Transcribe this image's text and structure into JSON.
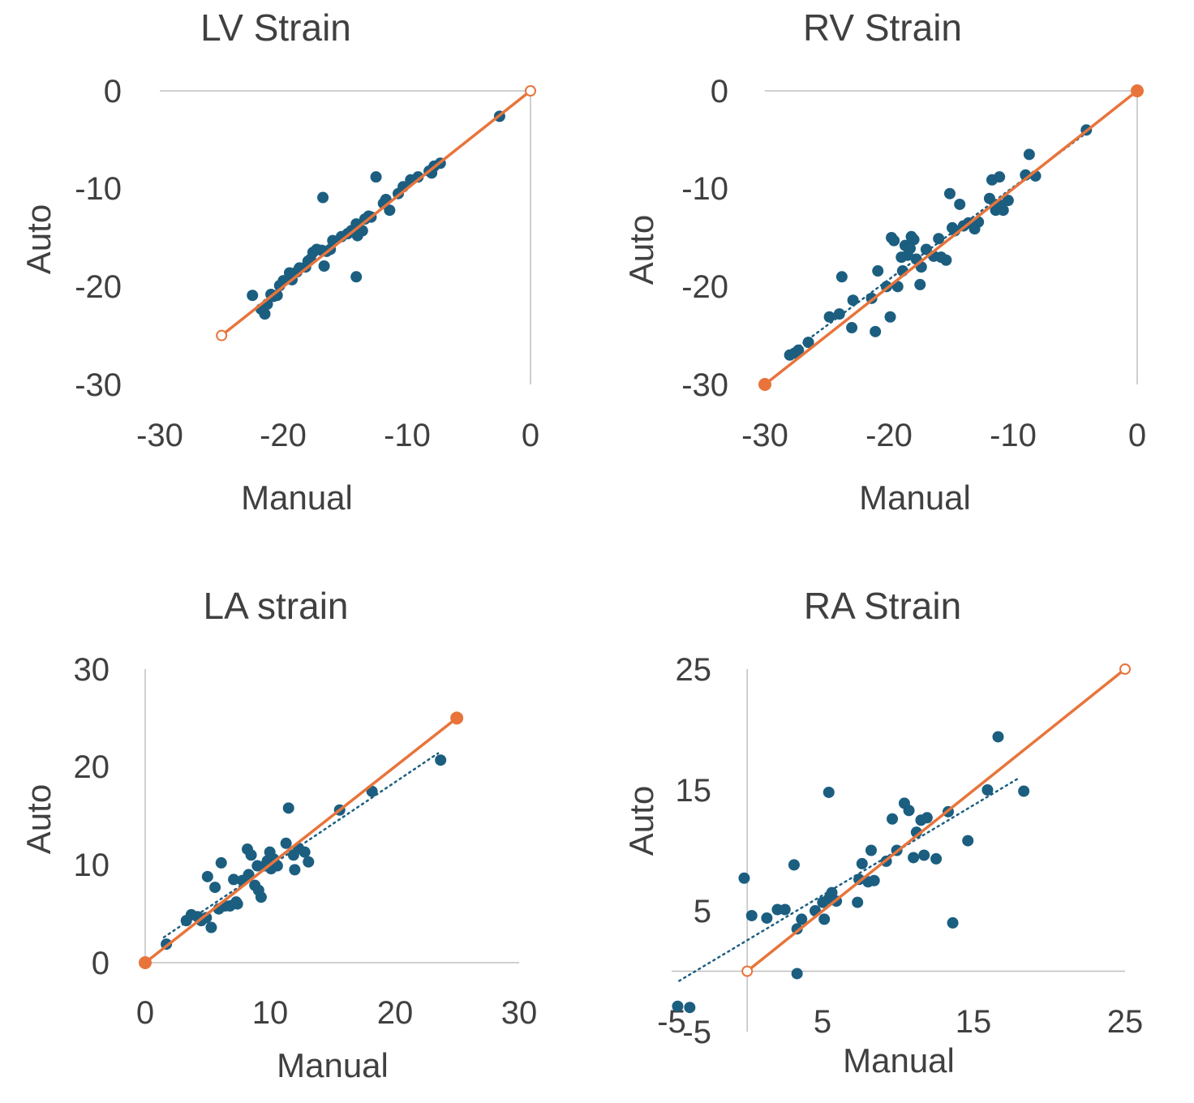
{
  "chart_data": [
    {
      "type": "scatter",
      "title": "LV Strain",
      "xlabel": "Manual",
      "ylabel": "Auto",
      "xlim": [
        -30,
        0
      ],
      "ylim": [
        -30,
        0
      ],
      "xticks": [
        "-30",
        "-20",
        "-10",
        "0"
      ],
      "yticks": [
        "0",
        "-10",
        "-20",
        "-30"
      ],
      "grid": false,
      "points_color": "#1b5e80",
      "identity_color": "#e8743b",
      "trend_color": "#1b5e80",
      "identity_line": {
        "x": [
          -25,
          0
        ],
        "y": [
          -25,
          0
        ],
        "marker_fill": "none"
      },
      "trend_line": {
        "x": [
          -25,
          -2.5
        ],
        "y": [
          -25,
          -2.5
        ]
      },
      "series": [
        {
          "x": [
            -22.5,
            -21.8,
            -21.5,
            -21.3,
            -21.0,
            -20.8,
            -20.5,
            -20.3,
            -20.0,
            -19.5,
            -19.3,
            -18.9,
            -18.7,
            -18.2,
            -18.0,
            -17.8,
            -17.6,
            -17.3,
            -16.9,
            -16.7,
            -16.5,
            -16.2,
            -16.0,
            -15.3,
            -14.8,
            -14.5,
            -14.1,
            -14.0,
            -13.6,
            -13.4,
            -13.1,
            -12.9,
            -12.5,
            -11.9,
            -11.7,
            -11.4,
            -10.7,
            -10.3,
            -9.7,
            -9.1,
            -8.2,
            -8.0,
            -7.8,
            -7.3,
            -2.5,
            -16.8,
            -14.1
          ],
          "y": [
            -20.9,
            -22.3,
            -22.8,
            -21.8,
            -20.8,
            -21.0,
            -20.9,
            -19.9,
            -19.4,
            -18.6,
            -19.3,
            -18.5,
            -18.1,
            -18.0,
            -17.4,
            -17.2,
            -16.5,
            -16.2,
            -16.3,
            -17.9,
            -16.4,
            -16.2,
            -15.3,
            -14.9,
            -14.6,
            -14.3,
            -13.6,
            -14.8,
            -14.3,
            -13.1,
            -12.8,
            -12.9,
            -8.8,
            -11.5,
            -11.1,
            -12.2,
            -10.5,
            -9.8,
            -9.1,
            -8.8,
            -8.2,
            -8.4,
            -7.7,
            -7.4,
            -2.6,
            -10.9,
            -19.0
          ]
        }
      ]
    },
    {
      "type": "scatter",
      "title": "RV Strain",
      "xlabel": "Manual",
      "ylabel": "Auto",
      "xlim": [
        -30,
        0
      ],
      "ylim": [
        -30,
        0
      ],
      "xticks": [
        "-30",
        "-20",
        "-10",
        "0"
      ],
      "yticks": [
        "0",
        "-10",
        "-20",
        "-30"
      ],
      "grid": false,
      "points_color": "#1b5e80",
      "identity_color": "#e8743b",
      "trend_color": "#1b5e80",
      "identity_line": {
        "x": [
          -30,
          0
        ],
        "y": [
          -30,
          0
        ],
        "marker_fill": "solid"
      },
      "trend_line": {
        "x": [
          -28,
          -4
        ],
        "y": [
          -26.8,
          -4.2
        ]
      },
      "series": [
        {
          "x": [
            -28.0,
            -27.6,
            -27.3,
            -26.5,
            -24.8,
            -24.0,
            -23.8,
            -23.0,
            -22.9,
            -21.4,
            -21.1,
            -20.9,
            -20.2,
            -19.9,
            -19.8,
            -19.6,
            -19.3,
            -19.0,
            -18.9,
            -18.7,
            -18.5,
            -18.3,
            -18.2,
            -18.0,
            -17.8,
            -17.5,
            -17.4,
            -17.0,
            -16.4,
            -16.0,
            -15.8,
            -15.4,
            -15.1,
            -14.9,
            -14.7,
            -14.3,
            -14.0,
            -13.6,
            -13.1,
            -12.8,
            -11.9,
            -11.7,
            -11.4,
            -11.1,
            -11.0,
            -10.8,
            -10.4,
            -9.0,
            -8.7,
            -8.2,
            -4.1
          ],
          "y": [
            -27.0,
            -26.8,
            -26.5,
            -25.7,
            -23.1,
            -22.8,
            -19.0,
            -24.2,
            -21.4,
            -21.2,
            -24.6,
            -18.4,
            -20.0,
            -23.1,
            -15.0,
            -15.3,
            -20.0,
            -17.0,
            -18.4,
            -15.8,
            -16.8,
            -16.1,
            -14.9,
            -15.2,
            -17.2,
            -19.8,
            -18.0,
            -16.2,
            -16.9,
            -15.1,
            -17.0,
            -17.3,
            -10.5,
            -14.0,
            -14.3,
            -11.6,
            -13.8,
            -13.5,
            -14.1,
            -13.4,
            -11.0,
            -9.1,
            -12.2,
            -8.8,
            -11.7,
            -12.2,
            -11.2,
            -8.6,
            -6.5,
            -8.7,
            -4.0
          ]
        }
      ]
    },
    {
      "type": "scatter",
      "title": "LA  strain",
      "xlabel": "Manual",
      "ylabel": "Auto",
      "xlim": [
        0,
        30
      ],
      "ylim": [
        0,
        30
      ],
      "xticks": [
        "0",
        "10",
        "20",
        "30"
      ],
      "yticks": [
        "30",
        "20",
        "10",
        "0"
      ],
      "grid": false,
      "points_color": "#1b5e80",
      "identity_color": "#e8743b",
      "trend_color": "#1b5e80",
      "identity_line": {
        "x": [
          0,
          25
        ],
        "y": [
          0,
          25
        ],
        "marker_fill": "solid"
      },
      "trend_line": {
        "x": [
          1.5,
          23.5
        ],
        "y": [
          2.6,
          21.4
        ]
      },
      "series": [
        {
          "x": [
            1.7,
            3.3,
            3.7,
            4.2,
            4.5,
            4.9,
            5.3,
            5.6,
            5.9,
            6.1,
            6.4,
            6.8,
            7.1,
            7.3,
            7.4,
            7.8,
            8.2,
            8.3,
            8.5,
            8.8,
            9.0,
            9.1,
            9.3,
            9.6,
            9.8,
            10.0,
            10.1,
            10.3,
            10.6,
            11.3,
            11.5,
            11.9,
            12.0,
            12.3,
            12.8,
            13.1,
            15.6,
            18.2,
            23.7,
            5.0
          ],
          "y": [
            1.9,
            4.3,
            4.9,
            4.7,
            4.3,
            4.6,
            3.6,
            7.7,
            5.5,
            10.2,
            5.8,
            5.8,
            8.5,
            6.2,
            6.0,
            8.4,
            11.6,
            9.0,
            11.0,
            7.9,
            9.9,
            7.4,
            6.7,
            9.9,
            10.4,
            11.3,
            9.6,
            10.6,
            9.9,
            12.2,
            15.8,
            11.0,
            9.5,
            11.7,
            11.3,
            10.3,
            15.6,
            17.5,
            20.7,
            8.8
          ]
        }
      ]
    },
    {
      "type": "scatter",
      "title": "RA Strain",
      "xlabel": "Manual",
      "ylabel": "Auto",
      "xlim": [
        -5,
        25
      ],
      "ylim": [
        -5,
        25
      ],
      "xticks": [
        "-5",
        "5",
        "15",
        "25"
      ],
      "yticks": [
        "25",
        "15",
        "5",
        "-5"
      ],
      "grid": false,
      "points_color": "#1b5e80",
      "identity_color": "#e8743b",
      "trend_color": "#1b5e80",
      "identity_line": {
        "x": [
          0,
          25
        ],
        "y": [
          0,
          25
        ],
        "marker_fill": "none"
      },
      "trend_line": {
        "x": [
          -4.5,
          18
        ],
        "y": [
          -0.8,
          16
        ]
      },
      "series": [
        {
          "x": [
            -4.6,
            -3.8,
            -0.2,
            0.3,
            1.3,
            2.0,
            2.5,
            3.1,
            3.3,
            3.6,
            4.5,
            5.0,
            5.1,
            5.4,
            5.6,
            5.9,
            7.3,
            7.4,
            7.6,
            8.0,
            8.2,
            8.4,
            9.2,
            9.6,
            9.9,
            10.4,
            10.7,
            11.0,
            11.2,
            11.5,
            11.7,
            11.9,
            12.5,
            13.3,
            13.6,
            14.6,
            15.9,
            16.6,
            18.3,
            5.4,
            3.3
          ],
          "y": [
            -2.9,
            -3.0,
            7.7,
            4.6,
            4.4,
            5.1,
            5.1,
            8.8,
            3.5,
            4.3,
            5.0,
            5.7,
            4.3,
            6.0,
            6.5,
            5.8,
            5.7,
            7.6,
            8.9,
            7.4,
            10.0,
            7.5,
            9.1,
            12.6,
            10.0,
            13.9,
            13.3,
            9.4,
            11.5,
            12.5,
            9.6,
            12.7,
            9.3,
            13.2,
            4.0,
            10.8,
            15.0,
            19.4,
            14.9,
            14.8,
            -0.2
          ]
        }
      ]
    }
  ]
}
